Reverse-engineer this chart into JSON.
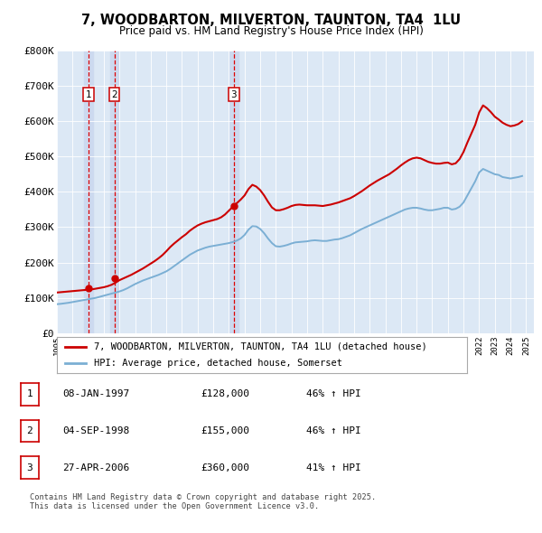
{
  "title": "7, WOODBARTON, MILVERTON, TAUNTON, TA4  1LU",
  "subtitle": "Price paid vs. HM Land Registry's House Price Index (HPI)",
  "plot_bg_color": "#dce8f5",
  "ylabel": "",
  "xlabel": "",
  "ylim": [
    0,
    800000
  ],
  "yticks": [
    0,
    100000,
    200000,
    300000,
    400000,
    500000,
    600000,
    700000,
    800000
  ],
  "ytick_labels": [
    "£0",
    "£100K",
    "£200K",
    "£300K",
    "£400K",
    "£500K",
    "£600K",
    "£700K",
    "£800K"
  ],
  "xmin": 1995.0,
  "xmax": 2025.5,
  "sale_dates": [
    1997.03,
    1998.67,
    2006.32
  ],
  "sale_prices": [
    128000,
    155000,
    360000
  ],
  "sale_labels": [
    "1",
    "2",
    "3"
  ],
  "red_line_color": "#cc0000",
  "blue_line_color": "#7bafd4",
  "marker_color": "#cc0000",
  "vline_color": "#dd0000",
  "vband_color": "#ccd9ef",
  "legend_entry1": "7, WOODBARTON, MILVERTON, TAUNTON, TA4 1LU (detached house)",
  "legend_entry2": "HPI: Average price, detached house, Somerset",
  "table_rows": [
    [
      "1",
      "08-JAN-1997",
      "£128,000",
      "46% ↑ HPI"
    ],
    [
      "2",
      "04-SEP-1998",
      "£155,000",
      "46% ↑ HPI"
    ],
    [
      "3",
      "27-APR-2006",
      "£360,000",
      "41% ↑ HPI"
    ]
  ],
  "footer": "Contains HM Land Registry data © Crown copyright and database right 2025.\nThis data is licensed under the Open Government Licence v3.0.",
  "hpi_x": [
    1995.0,
    1995.25,
    1995.5,
    1995.75,
    1996.0,
    1996.25,
    1996.5,
    1996.75,
    1997.0,
    1997.25,
    1997.5,
    1997.75,
    1998.0,
    1998.25,
    1998.5,
    1998.75,
    1999.0,
    1999.25,
    1999.5,
    1999.75,
    2000.0,
    2000.25,
    2000.5,
    2000.75,
    2001.0,
    2001.25,
    2001.5,
    2001.75,
    2002.0,
    2002.25,
    2002.5,
    2002.75,
    2003.0,
    2003.25,
    2003.5,
    2003.75,
    2004.0,
    2004.25,
    2004.5,
    2004.75,
    2005.0,
    2005.25,
    2005.5,
    2005.75,
    2006.0,
    2006.25,
    2006.5,
    2006.75,
    2007.0,
    2007.25,
    2007.5,
    2007.75,
    2008.0,
    2008.25,
    2008.5,
    2008.75,
    2009.0,
    2009.25,
    2009.5,
    2009.75,
    2010.0,
    2010.25,
    2010.5,
    2010.75,
    2011.0,
    2011.25,
    2011.5,
    2011.75,
    2012.0,
    2012.25,
    2012.5,
    2012.75,
    2013.0,
    2013.25,
    2013.5,
    2013.75,
    2014.0,
    2014.25,
    2014.5,
    2014.75,
    2015.0,
    2015.25,
    2015.5,
    2015.75,
    2016.0,
    2016.25,
    2016.5,
    2016.75,
    2017.0,
    2017.25,
    2017.5,
    2017.75,
    2018.0,
    2018.25,
    2018.5,
    2018.75,
    2019.0,
    2019.25,
    2019.5,
    2019.75,
    2020.0,
    2020.25,
    2020.5,
    2020.75,
    2021.0,
    2021.25,
    2021.5,
    2021.75,
    2022.0,
    2022.25,
    2022.5,
    2022.75,
    2023.0,
    2023.25,
    2023.5,
    2023.75,
    2024.0,
    2024.25,
    2024.5,
    2024.75
  ],
  "hpi_y": [
    82000,
    83000,
    84500,
    86000,
    88000,
    90000,
    92000,
    94000,
    96000,
    98000,
    100000,
    103000,
    106000,
    109000,
    112000,
    115000,
    118000,
    122000,
    127000,
    133000,
    139000,
    144000,
    149000,
    153000,
    157000,
    161000,
    165000,
    170000,
    175000,
    182000,
    190000,
    198000,
    206000,
    214000,
    222000,
    228000,
    234000,
    238000,
    242000,
    245000,
    247000,
    249000,
    251000,
    253000,
    255000,
    258000,
    262000,
    268000,
    278000,
    293000,
    303000,
    302000,
    295000,
    283000,
    268000,
    255000,
    246000,
    245000,
    247000,
    250000,
    254000,
    257000,
    258000,
    259000,
    260000,
    262000,
    263000,
    262000,
    261000,
    261000,
    263000,
    265000,
    266000,
    269000,
    273000,
    277000,
    283000,
    289000,
    295000,
    300000,
    305000,
    310000,
    315000,
    320000,
    325000,
    330000,
    335000,
    340000,
    345000,
    350000,
    353000,
    355000,
    355000,
    353000,
    350000,
    348000,
    348000,
    350000,
    352000,
    355000,
    355000,
    350000,
    352000,
    358000,
    370000,
    390000,
    410000,
    430000,
    455000,
    465000,
    460000,
    455000,
    450000,
    448000,
    442000,
    440000,
    438000,
    440000,
    442000,
    445000
  ],
  "red_x": [
    1995.0,
    1995.25,
    1995.5,
    1995.75,
    1996.0,
    1996.25,
    1996.5,
    1996.75,
    1997.0,
    1997.25,
    1997.5,
    1997.75,
    1998.0,
    1998.25,
    1998.5,
    1998.75,
    1999.0,
    1999.25,
    1999.5,
    1999.75,
    2000.0,
    2000.25,
    2000.5,
    2000.75,
    2001.0,
    2001.25,
    2001.5,
    2001.75,
    2002.0,
    2002.25,
    2002.5,
    2002.75,
    2003.0,
    2003.25,
    2003.5,
    2003.75,
    2004.0,
    2004.25,
    2004.5,
    2004.75,
    2005.0,
    2005.25,
    2005.5,
    2005.75,
    2006.0,
    2006.25,
    2006.5,
    2006.75,
    2007.0,
    2007.25,
    2007.5,
    2007.75,
    2008.0,
    2008.25,
    2008.5,
    2008.75,
    2009.0,
    2009.25,
    2009.5,
    2009.75,
    2010.0,
    2010.25,
    2010.5,
    2010.75,
    2011.0,
    2011.25,
    2011.5,
    2011.75,
    2012.0,
    2012.25,
    2012.5,
    2012.75,
    2013.0,
    2013.25,
    2013.5,
    2013.75,
    2014.0,
    2014.25,
    2014.5,
    2014.75,
    2015.0,
    2015.25,
    2015.5,
    2015.75,
    2016.0,
    2016.25,
    2016.5,
    2016.75,
    2017.0,
    2017.25,
    2017.5,
    2017.75,
    2018.0,
    2018.25,
    2018.5,
    2018.75,
    2019.0,
    2019.25,
    2019.5,
    2019.75,
    2020.0,
    2020.25,
    2020.5,
    2020.75,
    2021.0,
    2021.25,
    2021.5,
    2021.75,
    2022.0,
    2022.25,
    2022.5,
    2022.75,
    2023.0,
    2023.25,
    2023.5,
    2023.75,
    2024.0,
    2024.25,
    2024.5,
    2024.75
  ],
  "red_y": [
    115000,
    116000,
    117000,
    118000,
    119000,
    120000,
    121000,
    122000,
    123000,
    124000,
    126000,
    128000,
    130000,
    133000,
    137000,
    143000,
    150000,
    155000,
    160000,
    165000,
    171000,
    177000,
    183000,
    190000,
    197000,
    204000,
    212000,
    221000,
    232000,
    244000,
    254000,
    263000,
    272000,
    280000,
    290000,
    298000,
    305000,
    310000,
    314000,
    317000,
    320000,
    323000,
    328000,
    336000,
    347000,
    358000,
    368000,
    378000,
    390000,
    408000,
    420000,
    415000,
    405000,
    390000,
    372000,
    356000,
    348000,
    348000,
    351000,
    355000,
    360000,
    363000,
    364000,
    363000,
    362000,
    362000,
    362000,
    361000,
    360000,
    362000,
    364000,
    367000,
    370000,
    374000,
    378000,
    382000,
    388000,
    395000,
    402000,
    410000,
    418000,
    425000,
    432000,
    438000,
    444000,
    450000,
    458000,
    466000,
    475000,
    483000,
    490000,
    495000,
    497000,
    495000,
    490000,
    485000,
    482000,
    480000,
    480000,
    482000,
    483000,
    478000,
    481000,
    493000,
    513000,
    540000,
    565000,
    590000,
    625000,
    645000,
    637000,
    626000,
    613000,
    605000,
    596000,
    590000,
    586000,
    588000,
    592000,
    600000
  ]
}
